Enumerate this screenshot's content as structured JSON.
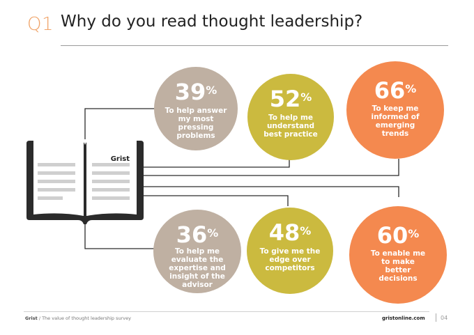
{
  "header": {
    "question_number": "Q1",
    "question_title": "Why do you read thought leadership?"
  },
  "book": {
    "brand_label": "Grist"
  },
  "chart_data": {
    "type": "bubble",
    "unit": "%",
    "items": [
      {
        "value": 39,
        "label": "To help answer my most pressing problems",
        "color": "#bfb0a2"
      },
      {
        "value": 52,
        "label": "To help me understand best practice",
        "color": "#cbba3f"
      },
      {
        "value": 66,
        "label": "To keep me informed of emerging trends",
        "color": "#f4894f"
      },
      {
        "value": 36,
        "label": "To help me evaluate the expertise and insight of the advisor",
        "color": "#bfb0a2"
      },
      {
        "value": 48,
        "label": "To give me the edge over competitors",
        "color": "#cbba3f"
      },
      {
        "value": 60,
        "label": "To enable me to make better decisions",
        "color": "#f4894f"
      }
    ]
  },
  "footer": {
    "brand": "Grist",
    "subtitle": "/ The value of thought leadership survey",
    "url": "gristonline.com",
    "page": "04"
  }
}
